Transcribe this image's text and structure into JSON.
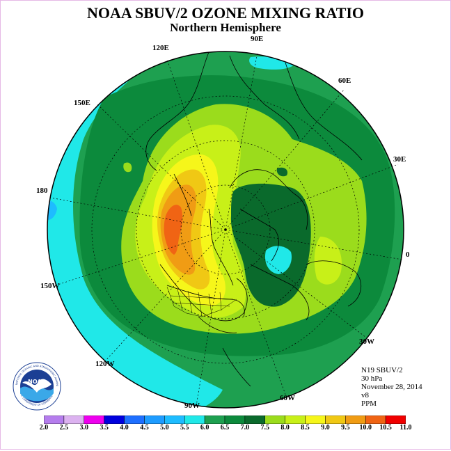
{
  "header": {
    "title": "NOAA SBUV/2 OZONE MIXING RATIO",
    "subtitle": "Northern Hemisphere"
  },
  "longitude_labels": {
    "lon_90e": "90E",
    "lon_60e": "60E",
    "lon_30e": "30E",
    "lon_0": "0",
    "lon_30w": "30W",
    "lon_60w": "60W",
    "lon_90w": "90W",
    "lon_120w": "120W",
    "lon_150w": "150W",
    "lon_180": "180",
    "lon_150e": "150E",
    "lon_120e": "120E"
  },
  "info": {
    "instrument": "N19 SBUV/2",
    "pressure_level": "30 hPa",
    "date": "November 28, 2014",
    "version": "v8",
    "units": "PPM"
  },
  "logo": {
    "name": "noaa-logo",
    "text": "NOAA",
    "ring_text_top": "NATIONAL OCEANIC AND ATMOSPHERIC ADMINISTRATION",
    "ring_text_bottom": "U.S. DEPARTMENT OF COMMERCE"
  },
  "colorbar": {
    "ticks": [
      "2.0",
      "2.5",
      "3.0",
      "3.5",
      "4.0",
      "4.5",
      "5.0",
      "5.5",
      "6.0",
      "6.5",
      "7.0",
      "7.5",
      "8.0",
      "8.5",
      "9.0",
      "9.5",
      "10.0",
      "10.5",
      "11.0"
    ],
    "colors": [
      "#b57ded",
      "#dcb2f0",
      "#ee00ee",
      "#0000dd",
      "#1e6fff",
      "#1e9cff",
      "#1ebcff",
      "#20e8e8",
      "#1ea050",
      "#0c8a3c",
      "#0a6a2c",
      "#9bdc1c",
      "#c8f018",
      "#f6f61a",
      "#f0c814",
      "#f09c14",
      "#f06414",
      "#f00000",
      "#8b5a3c"
    ],
    "colors_note_only_for_bins": "18 bins"
  },
  "map_colors": {
    "ocean_edge": "#20e8e8",
    "cyan_light": "#1ebcff",
    "green": "#1ea050",
    "green_mid": "#0c8a3c",
    "green_dark": "#0a6a2c",
    "lime": "#9bdc1c",
    "yellow_green": "#c8f018",
    "yellow": "#f6f61a",
    "gold": "#f0c814",
    "orange": "#f09c14",
    "red_orange": "#f06414"
  }
}
